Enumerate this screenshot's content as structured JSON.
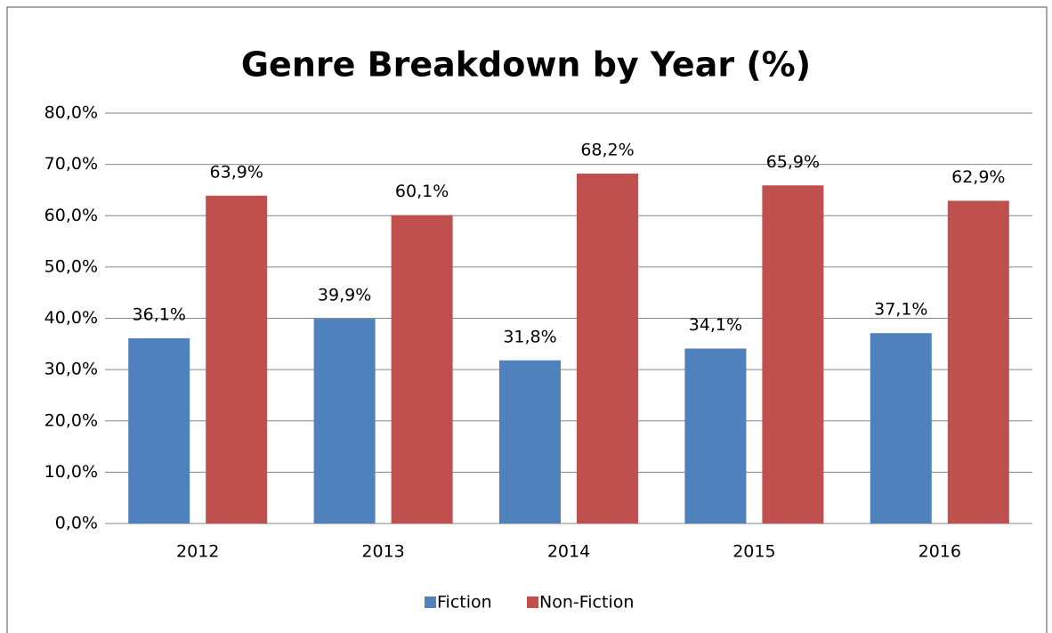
{
  "chart_data": {
    "type": "bar",
    "title": "Genre Breakdown by Year (%)",
    "categories": [
      "2012",
      "2013",
      "2014",
      "2015",
      "2016"
    ],
    "series": [
      {
        "name": "Fiction",
        "color": "#4f81bd",
        "values": [
          36.1,
          39.9,
          31.8,
          34.1,
          37.1
        ],
        "value_labels": [
          "36,1%",
          "39,9%",
          "31,8%",
          "34,1%",
          "37,1%"
        ]
      },
      {
        "name": "Non-Fiction",
        "color": "#c0504d",
        "values": [
          63.9,
          60.1,
          68.2,
          65.9,
          62.9
        ],
        "value_labels": [
          "63,9%",
          "60,1%",
          "68,2%",
          "65,9%",
          "62,9%"
        ]
      }
    ],
    "ylim": [
      0,
      80
    ],
    "yticks": [
      {
        "value": 0,
        "label": "0,0%"
      },
      {
        "value": 10,
        "label": "10,0%"
      },
      {
        "value": 20,
        "label": "20,0%"
      },
      {
        "value": 30,
        "label": "30,0%"
      },
      {
        "value": 40,
        "label": "40,0%"
      },
      {
        "value": 50,
        "label": "50,0%"
      },
      {
        "value": 60,
        "label": "60,0%"
      },
      {
        "value": 70,
        "label": "70,0%"
      },
      {
        "value": 80,
        "label": "80,0%"
      }
    ],
    "grid": true,
    "legend": "bottom"
  }
}
